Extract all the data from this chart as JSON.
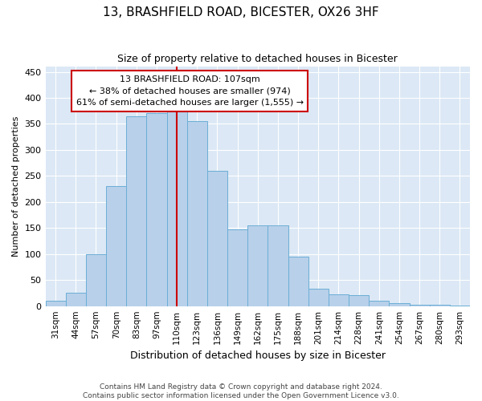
{
  "title": "13, BRASHFIELD ROAD, BICESTER, OX26 3HF",
  "subtitle": "Size of property relative to detached houses in Bicester",
  "xlabel": "Distribution of detached houses by size in Bicester",
  "ylabel": "Number of detached properties",
  "bar_labels": [
    "31sqm",
    "44sqm",
    "57sqm",
    "70sqm",
    "83sqm",
    "97sqm",
    "110sqm",
    "123sqm",
    "136sqm",
    "149sqm",
    "162sqm",
    "175sqm",
    "188sqm",
    "201sqm",
    "214sqm",
    "228sqm",
    "241sqm",
    "254sqm",
    "267sqm",
    "280sqm",
    "293sqm"
  ],
  "bar_heights": [
    10,
    26,
    100,
    230,
    365,
    370,
    375,
    355,
    260,
    147,
    155,
    155,
    95,
    33,
    22,
    21,
    10,
    5,
    2,
    3,
    1
  ],
  "bar_color": "#b8d0ea",
  "bar_edge_color": "#6baed6",
  "annotation_text_line1": "13 BRASHFIELD ROAD: 107sqm",
  "annotation_text_line2": "← 38% of detached houses are smaller (974)",
  "annotation_text_line3": "61% of semi-detached houses are larger (1,555) →",
  "annotation_box_color": "#ffffff",
  "annotation_box_edge": "#cc0000",
  "vline_color": "#cc0000",
  "ylim": [
    0,
    460
  ],
  "yticks": [
    0,
    50,
    100,
    150,
    200,
    250,
    300,
    350,
    400,
    450
  ],
  "background_color": "#dce8f5",
  "grid_color": "#ffffff",
  "title_fontsize": 11,
  "subtitle_fontsize": 9,
  "ylabel_fontsize": 8,
  "xlabel_fontsize": 9,
  "footer1": "Contains HM Land Registry data © Crown copyright and database right 2024.",
  "footer2": "Contains public sector information licensed under the Open Government Licence v3.0."
}
